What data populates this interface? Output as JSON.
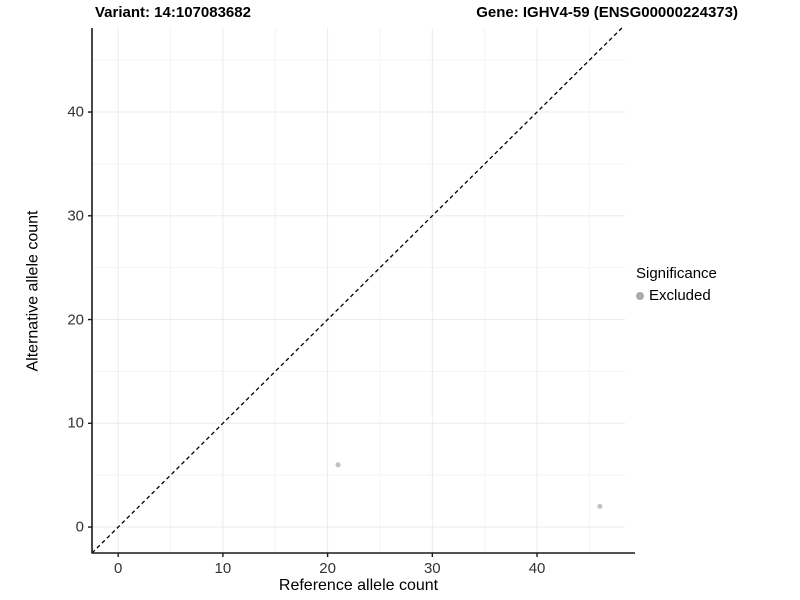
{
  "titles": {
    "left": "Variant: 14:107083682",
    "right": "Gene: IGHV4-59 (ENSG00000224373)"
  },
  "chart_data": {
    "type": "scatter",
    "title_left": "Variant: 14:107083682",
    "title_right": "Gene: IGHV4-59 (ENSG00000224373)",
    "xlabel": "Reference allele count",
    "ylabel": "Alternative allele count",
    "xlim": [
      -2.5,
      48.4
    ],
    "ylim": [
      -2.5,
      48.1
    ],
    "xticks": [
      0,
      10,
      20,
      30,
      40
    ],
    "yticks": [
      0,
      10,
      20,
      30,
      40
    ],
    "x_minor_ticks": [
      5,
      15,
      25,
      35,
      45
    ],
    "y_minor_ticks": [
      5,
      15,
      25,
      35,
      45
    ],
    "grid": true,
    "series": [
      {
        "name": "Excluded",
        "color": "#c2c2c2",
        "points": [
          [
            21,
            6
          ],
          [
            46,
            2
          ]
        ]
      }
    ],
    "annotations": [
      {
        "kind": "abline",
        "slope": 1,
        "intercept": 0,
        "style": "dashed",
        "color": "#000000"
      }
    ],
    "legend": {
      "title": "Significance",
      "position": "right",
      "items": [
        {
          "label": "Excluded",
          "color": "#ababab"
        }
      ]
    }
  },
  "colors": {
    "background": "#ffffff",
    "major_grid": "#ebebeb",
    "minor_grid": "#f4f4f4",
    "axis_line": "#1a1a1a",
    "tick_mark": "#1a1a1a",
    "tick_text": "#333333",
    "point": "#c2c2c2",
    "identity_line": "#000000"
  }
}
